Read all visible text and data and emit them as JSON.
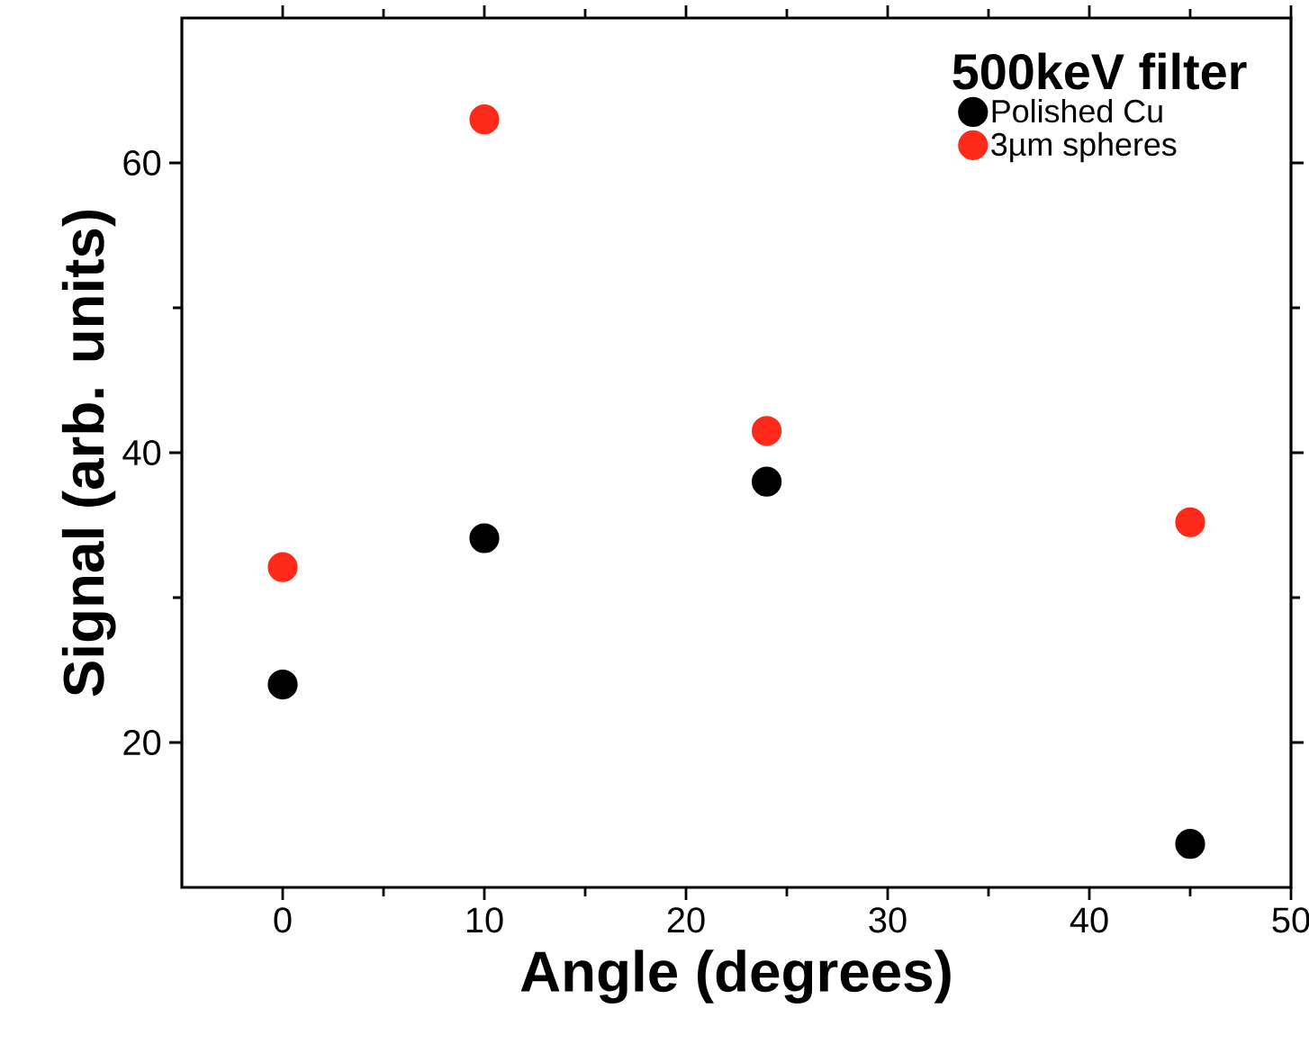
{
  "chart_data": {
    "type": "scatter",
    "xlabel": "Angle (degrees)",
    "ylabel": "Signal (arb. units)",
    "legend_title": "500keV filter",
    "xlim": [
      -5,
      50
    ],
    "xticks": [
      0,
      10,
      20,
      30,
      40,
      50
    ],
    "ylim": [
      10,
      70
    ],
    "yticks": [
      20,
      40,
      60
    ],
    "legend": "top right",
    "series": [
      {
        "name": "Polished Cu",
        "color": "#000000",
        "x": [
          0,
          10,
          24,
          45
        ],
        "values": [
          24,
          34.1,
          38,
          13
        ]
      },
      {
        "name": "3µm spheres",
        "color": "#ff2a1a",
        "x": [
          0,
          10,
          24,
          45
        ],
        "values": [
          32.1,
          63,
          41.5,
          35.2
        ]
      }
    ]
  }
}
